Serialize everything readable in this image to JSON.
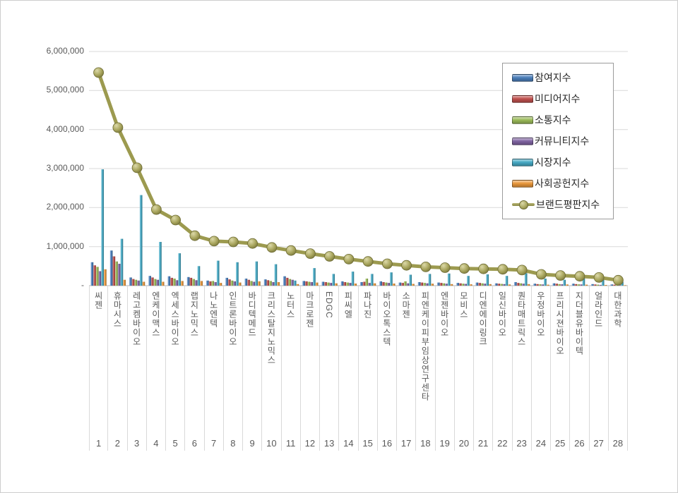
{
  "chart_data": {
    "type": "bar+line",
    "title": "",
    "grid": "horizontal",
    "legend_position": "upper-right",
    "ylim": [
      0,
      6000000
    ],
    "y_ticks": [
      {
        "label": "6,000,000",
        "value": 6000000
      },
      {
        "label": "5,000,000",
        "value": 5000000
      },
      {
        "label": "4,000,000",
        "value": 4000000
      },
      {
        "label": "3,000,000",
        "value": 3000000
      },
      {
        "label": "2,000,000",
        "value": 2000000
      },
      {
        "label": "1,000,000",
        "value": 1000000
      },
      {
        "label": "-",
        "value": 0
      }
    ],
    "categories": [
      "씨젠",
      "휴마시스",
      "레고켐바이오",
      "엔케이맥스",
      "엑세스바이오",
      "랩지노믹스",
      "나노엔텍",
      "인트론바이오",
      "바디텍메드",
      "크리스탈지노믹스",
      "노터스",
      "마크로젠",
      "EDGC",
      "피씨엘",
      "파나진",
      "바이오톡스텍",
      "소마젠",
      "피엔케이피부임상연구센타",
      "엔젠바이오",
      "모비스",
      "디엔에이링크",
      "일신바이오",
      "퀀타매트릭스",
      "우정바이오",
      "프리시젼바이오",
      "지더블유바이텍",
      "얼라인드",
      "대한과학"
    ],
    "rank_labels": [
      "1",
      "2",
      "3",
      "4",
      "5",
      "6",
      "7",
      "8",
      "9",
      "10",
      "11",
      "12",
      "13",
      "14",
      "15",
      "16",
      "17",
      "18",
      "19",
      "20",
      "21",
      "22",
      "23",
      "24",
      "25",
      "26",
      "27",
      "28"
    ],
    "bar_series": [
      {
        "name": "참여지수",
        "key": "participation-index",
        "color": "#4A7EBA",
        "values": [
          600000,
          900000,
          210000,
          250000,
          240000,
          220000,
          130000,
          200000,
          180000,
          160000,
          240000,
          120000,
          100000,
          110000,
          90000,
          110000,
          80000,
          90000,
          80000,
          70000,
          80000,
          60000,
          90000,
          50000,
          60000,
          50000,
          40000,
          30000
        ]
      },
      {
        "name": "미디어지수",
        "key": "media-index",
        "color": "#C0504D",
        "values": [
          520000,
          750000,
          170000,
          210000,
          200000,
          200000,
          110000,
          160000,
          150000,
          140000,
          200000,
          110000,
          90000,
          90000,
          100000,
          90000,
          70000,
          80000,
          70000,
          60000,
          70000,
          50000,
          70000,
          40000,
          50000,
          40000,
          30000,
          25000
        ]
      },
      {
        "name": "소통지수",
        "key": "communication-index",
        "color": "#9BBB59",
        "values": [
          480000,
          620000,
          150000,
          170000,
          180000,
          170000,
          120000,
          130000,
          120000,
          120000,
          170000,
          100000,
          80000,
          80000,
          180000,
          80000,
          110000,
          70000,
          60000,
          50000,
          60000,
          45000,
          60000,
          35000,
          40000,
          35000,
          25000,
          20000
        ]
      },
      {
        "name": "커뮤니티지수",
        "key": "community-index",
        "color": "#8064A2",
        "values": [
          370000,
          560000,
          130000,
          150000,
          140000,
          140000,
          90000,
          110000,
          100000,
          90000,
          150000,
          90000,
          70000,
          70000,
          70000,
          70000,
          60000,
          60000,
          50000,
          45000,
          50000,
          40000,
          50000,
          30000,
          35000,
          30000,
          20000,
          15000
        ]
      },
      {
        "name": "시장지수",
        "key": "market-index",
        "color": "#45A9C4",
        "values": [
          2980000,
          1200000,
          2320000,
          1120000,
          830000,
          500000,
          640000,
          600000,
          620000,
          550000,
          130000,
          450000,
          300000,
          360000,
          300000,
          340000,
          280000,
          300000,
          310000,
          250000,
          290000,
          250000,
          320000,
          180000,
          150000,
          200000,
          150000,
          100000
        ]
      },
      {
        "name": "사회공헌지수",
        "key": "social-contribution-index",
        "color": "#E8963A",
        "values": [
          420000,
          150000,
          100000,
          100000,
          120000,
          120000,
          70000,
          80000,
          110000,
          90000,
          40000,
          80000,
          60000,
          55000,
          60000,
          55000,
          45000,
          50000,
          40000,
          35000,
          40000,
          30000,
          40000,
          25000,
          30000,
          25000,
          18000,
          12000
        ]
      }
    ],
    "line_series": {
      "name": "브랜드평판지수",
      "key": "brand-reputation-index",
      "color": "#9C9A4F",
      "values": [
        5460000,
        4050000,
        3020000,
        1950000,
        1680000,
        1280000,
        1140000,
        1120000,
        1080000,
        980000,
        900000,
        820000,
        750000,
        680000,
        620000,
        560000,
        520000,
        480000,
        460000,
        440000,
        430000,
        420000,
        400000,
        290000,
        260000,
        240000,
        210000,
        140000
      ]
    },
    "colors": {
      "gridline": "#d9d9d9",
      "axis_line": "#b3b3b3",
      "tick_text": "#595959",
      "legend_border": "#9b9b9b",
      "line_marker_fill": "#a7a45c"
    }
  }
}
